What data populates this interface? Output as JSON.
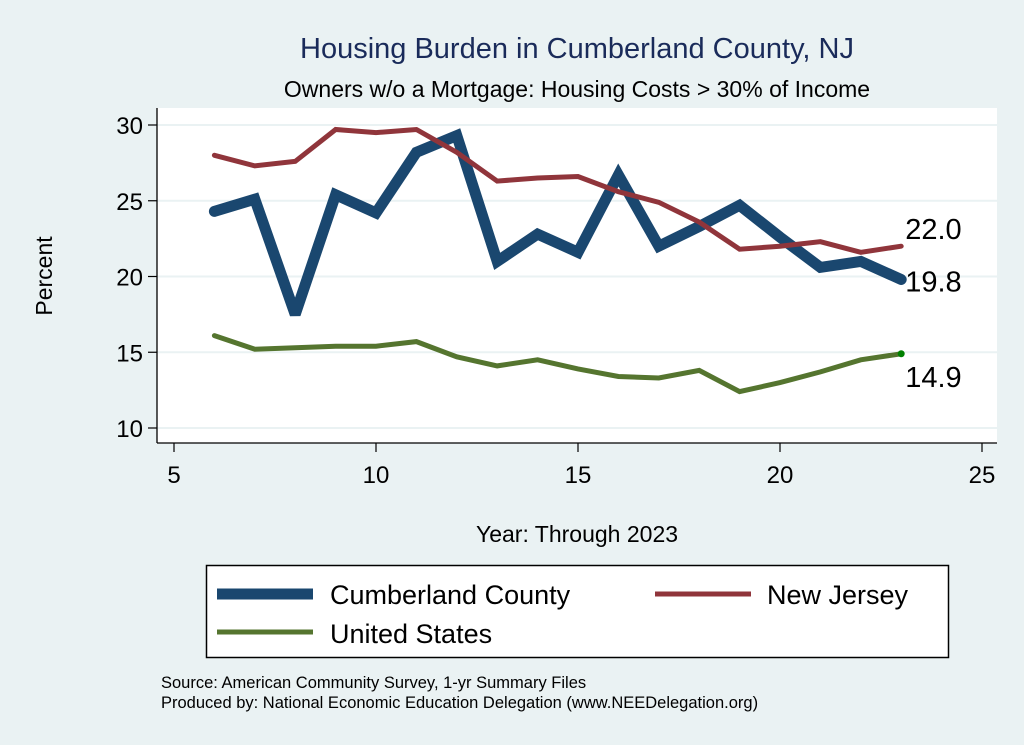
{
  "chart_data": {
    "type": "line",
    "title": "Housing Burden in Cumberland County, NJ",
    "subtitle": "Owners w/o a Mortgage: Housing Costs > 30% of Income",
    "xlabel": "Year: Through 2023",
    "ylabel": "Percent",
    "xlim": [
      5,
      25
    ],
    "ylim": [
      10,
      30
    ],
    "xticks": [
      5,
      10,
      15,
      20,
      25
    ],
    "yticks": [
      10,
      15,
      20,
      25,
      30
    ],
    "grid": true,
    "x": [
      6,
      7,
      8,
      9,
      10,
      11,
      12,
      13,
      14,
      15,
      16,
      17,
      18,
      19,
      20,
      21,
      22,
      23
    ],
    "series": [
      {
        "name": "Cumberland County",
        "color": "#1a476f",
        "weight": "thick",
        "values": [
          24.3,
          25.1,
          17.5,
          25.4,
          24.2,
          28.2,
          29.3,
          21.0,
          22.8,
          21.6,
          26.7,
          22.0,
          23.3,
          24.7,
          22.6,
          20.6,
          21.0,
          19.8
        ],
        "end_label": "19.8"
      },
      {
        "name": "New Jersey",
        "color": "#90353b",
        "weight": "medium",
        "values": [
          28.0,
          27.3,
          27.6,
          29.7,
          29.5,
          29.7,
          28.2,
          26.3,
          26.5,
          26.6,
          25.6,
          24.9,
          23.6,
          21.8,
          22.0,
          22.3,
          21.6,
          22.0
        ],
        "end_label": "22.0"
      },
      {
        "name": "United States",
        "color": "#55752f",
        "weight": "medium",
        "values": [
          16.1,
          15.2,
          15.3,
          15.4,
          15.4,
          15.7,
          14.7,
          14.1,
          14.5,
          13.9,
          13.4,
          13.3,
          13.8,
          12.4,
          13.0,
          13.7,
          14.5,
          14.9
        ],
        "end_label": "14.9",
        "end_marker_color": "#008000"
      }
    ],
    "legend": {
      "placement": "bottom",
      "entries": [
        "Cumberland County",
        "New Jersey",
        "United States"
      ]
    },
    "notes": [
      "Source: American Community Survey, 1-yr Summary Files",
      "Produced by: National Economic Education Delegation (www.NEEDelegation.org)"
    ]
  },
  "colors": {
    "background": "#eaf2f3",
    "plot_background": "#ffffff",
    "title": "#1a2b5a",
    "gridline": "#eaf2f3"
  }
}
